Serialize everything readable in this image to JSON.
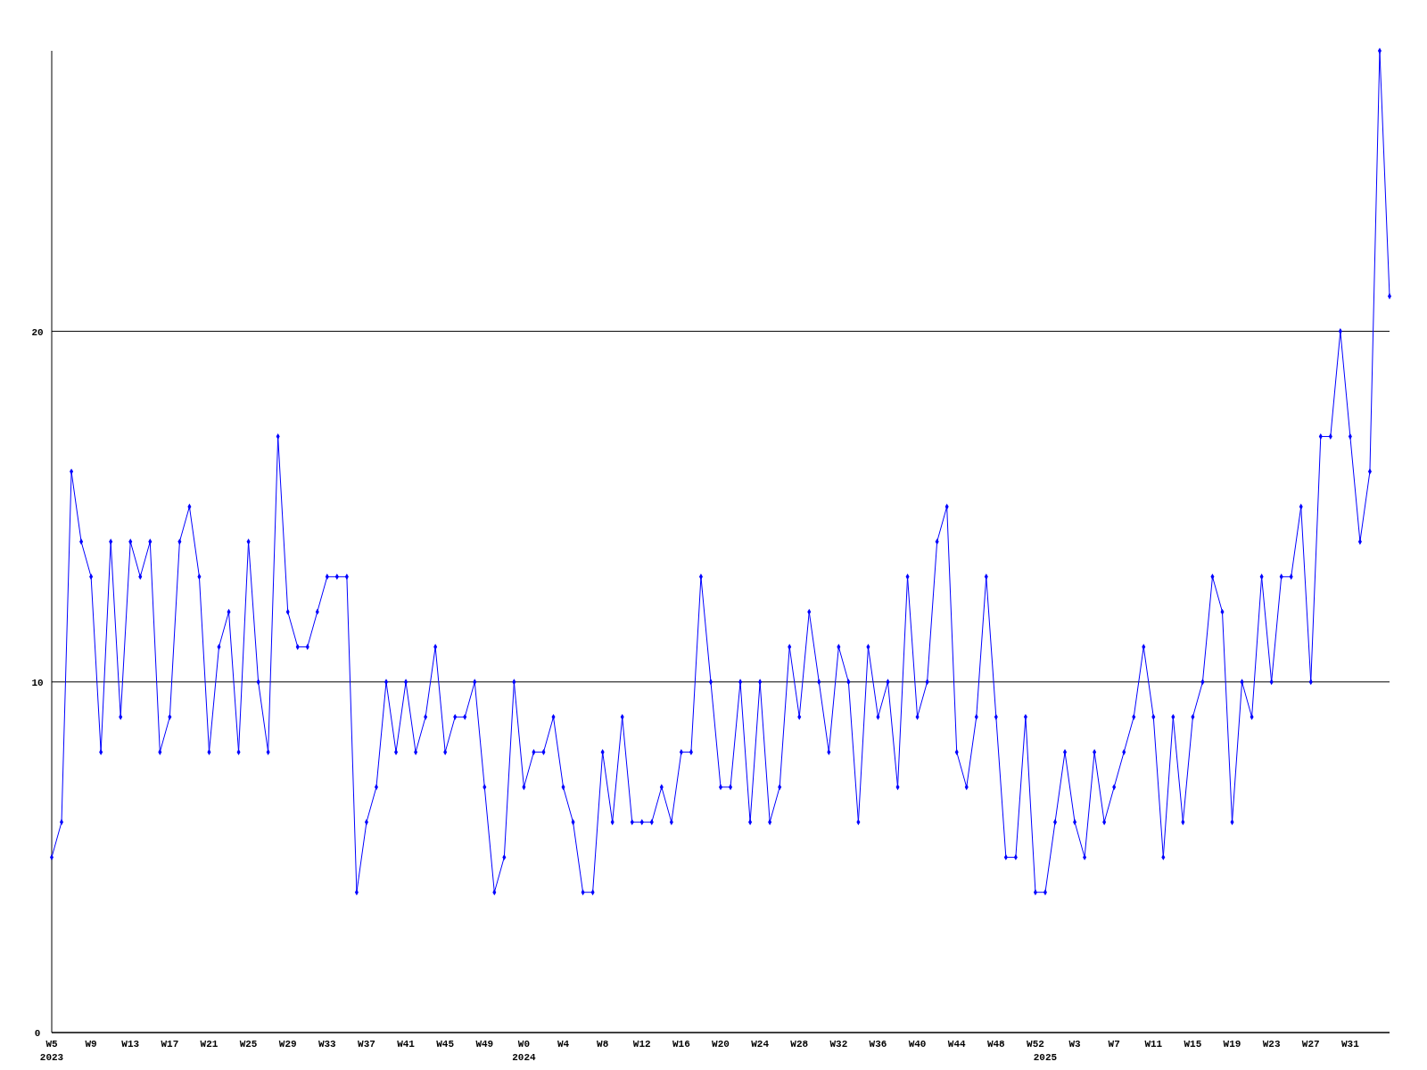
{
  "chart_data": {
    "type": "line",
    "categories": [
      "W5\n2023",
      null,
      null,
      null,
      "W9",
      null,
      null,
      null,
      "W13",
      null,
      null,
      null,
      "W17",
      null,
      null,
      null,
      "W21",
      null,
      null,
      null,
      "W25",
      null,
      null,
      null,
      "W29",
      null,
      null,
      null,
      "W33",
      null,
      null,
      null,
      "W37",
      null,
      null,
      null,
      "W41",
      null,
      null,
      null,
      "W45",
      null,
      null,
      null,
      "W49",
      null,
      null,
      null,
      "W0\n2024",
      null,
      null,
      null,
      "W4",
      null,
      null,
      null,
      "W8",
      null,
      null,
      null,
      "W12",
      null,
      null,
      null,
      "W16",
      null,
      null,
      null,
      "W20",
      null,
      null,
      null,
      "W24",
      null,
      null,
      null,
      "W28",
      null,
      null,
      null,
      "W32",
      null,
      null,
      null,
      "W36",
      null,
      null,
      null,
      "W40",
      null,
      null,
      null,
      "W44",
      null,
      null,
      null,
      "W48",
      null,
      null,
      null,
      "W52",
      "\n2025",
      null,
      null,
      "W3",
      null,
      null,
      null,
      "W7",
      null,
      null,
      null,
      "W11",
      null,
      null,
      null,
      "W15",
      null,
      null,
      null,
      "W19",
      null,
      null,
      null,
      "W23",
      null,
      null,
      null,
      "W27",
      null,
      null,
      null,
      "W31",
      null,
      null,
      null,
      null
    ],
    "series": [
      {
        "color": "#0000ff",
        "values": [
          5,
          6,
          16,
          14,
          13,
          8,
          14,
          9,
          14,
          13,
          14,
          8,
          9,
          14,
          15,
          13,
          8,
          11,
          12,
          8,
          14,
          10,
          8,
          17,
          12,
          11,
          11,
          12,
          13,
          13,
          13,
          4,
          6,
          7,
          10,
          8,
          10,
          8,
          9,
          11,
          8,
          9,
          9,
          10,
          7,
          4,
          5,
          10,
          7,
          8,
          8,
          9,
          7,
          6,
          4,
          4,
          8,
          6,
          9,
          6,
          6,
          6,
          7,
          6,
          8,
          8,
          13,
          10,
          7,
          7,
          10,
          6,
          10,
          6,
          7,
          11,
          9,
          12,
          10,
          8,
          11,
          10,
          6,
          11,
          9,
          10,
          7,
          13,
          9,
          10,
          14,
          15,
          8,
          7,
          9,
          13,
          9,
          5,
          5,
          9,
          4,
          4,
          6,
          8,
          6,
          5,
          8,
          6,
          7,
          8,
          9,
          11,
          9,
          5,
          9,
          6,
          9,
          10,
          13,
          12,
          6,
          10,
          9,
          13,
          10,
          13,
          13,
          15,
          10,
          17,
          17,
          20,
          17,
          14,
          16,
          28,
          21
        ]
      }
    ],
    "ylim": [
      0,
      28
    ],
    "yticks": [
      0,
      10,
      20
    ],
    "grid": "y",
    "marker": "diamond",
    "line_style": "solid"
  }
}
